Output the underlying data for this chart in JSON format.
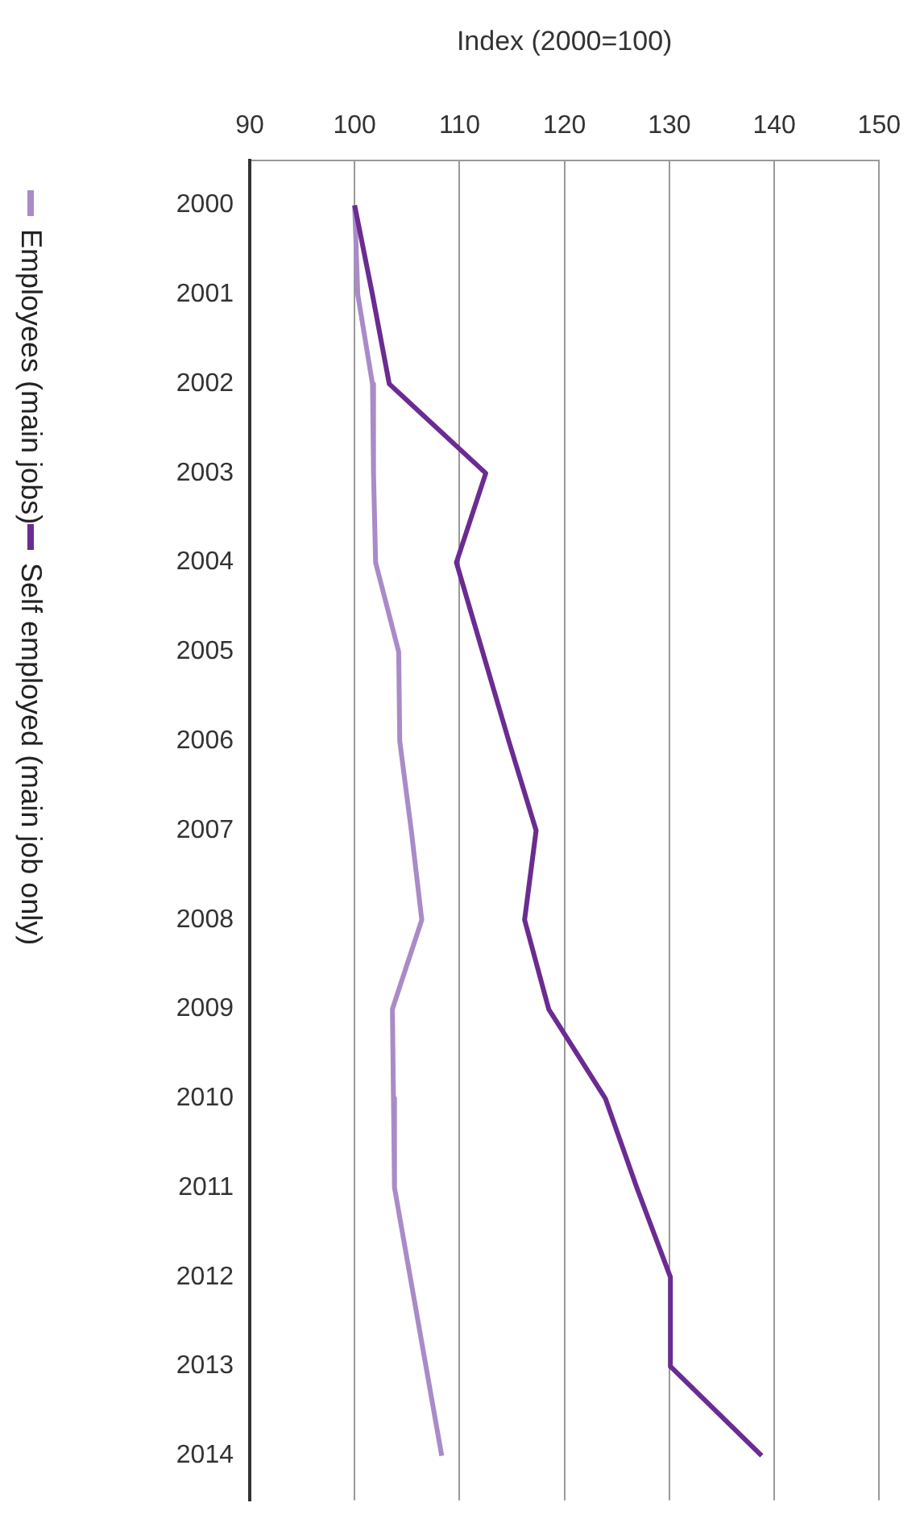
{
  "chart_data": {
    "type": "line",
    "orientation": "horizontal",
    "xlabel": "Index (2000=100)",
    "categories": [
      "2000",
      "2001",
      "2002",
      "2003",
      "2004",
      "2005",
      "2006",
      "2007",
      "2008",
      "2009",
      "2010",
      "2011",
      "2012",
      "2013",
      "2014"
    ],
    "series": [
      {
        "name": "Self employed (main job only)",
        "color": "#6a2c91",
        "values": [
          100,
          101.7,
          103.3,
          112.5,
          109.7,
          112.2,
          114.7,
          117.3,
          116.2,
          118.5,
          123.9,
          126.9,
          130.1,
          130.1,
          138.8
        ]
      },
      {
        "name": "Employees (main jobs)",
        "color": "#a98bc8",
        "values": [
          100,
          100.3,
          101.7,
          101.8,
          102,
          104.2,
          104.3,
          105.4,
          106.4,
          103.6,
          103.7,
          103.8,
          105.3,
          106.8,
          108.3
        ]
      }
    ],
    "xlim": [
      90,
      150
    ],
    "xticks": [
      90,
      100,
      110,
      120,
      130,
      140,
      150
    ],
    "grid": "x",
    "legend": "left",
    "marker": "none",
    "line_style": "solid"
  }
}
